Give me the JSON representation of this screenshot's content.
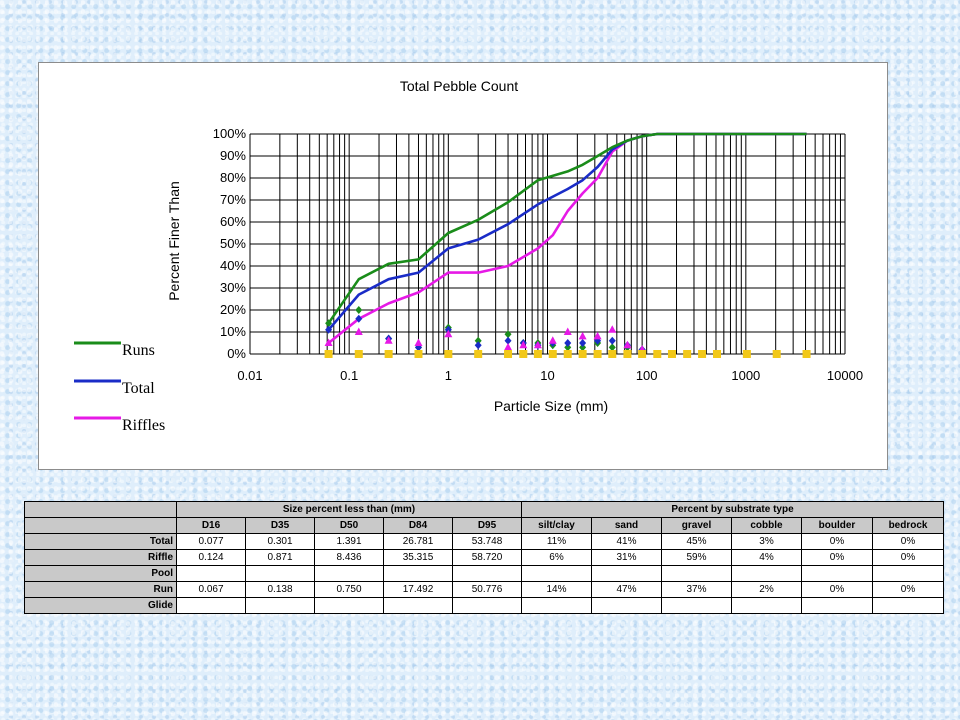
{
  "chart_data": {
    "type": "line",
    "title": "Total Pebble Count",
    "xlabel": "Particle Size (mm)",
    "ylabel": "Percent Finer Than",
    "x_scale": "log",
    "xlim": [
      0.01,
      10000
    ],
    "ylim": [
      0,
      100
    ],
    "x_tick_labels": [
      "0.01",
      "0.1",
      "1",
      "10",
      "100",
      "1000",
      "10000"
    ],
    "x_tick_values": [
      0.01,
      0.1,
      1,
      10,
      100,
      1000,
      10000
    ],
    "y_tick_labels": [
      "0%",
      "10%",
      "20%",
      "30%",
      "40%",
      "50%",
      "60%",
      "70%",
      "80%",
      "90%",
      "100%"
    ],
    "y_tick_values": [
      0,
      10,
      20,
      30,
      40,
      50,
      60,
      70,
      80,
      90,
      100
    ],
    "grid": true,
    "legend_position": "left",
    "series": [
      {
        "name": "Runs",
        "color": "#1a8c1a",
        "x": [
          0.062,
          0.125,
          0.25,
          0.5,
          1,
          2,
          4,
          8,
          16,
          22.6,
          32,
          45,
          64,
          90,
          128,
          180,
          256,
          362,
          512,
          1024,
          2048,
          4096
        ],
        "y": [
          14,
          34,
          41,
          43,
          55,
          61,
          69,
          79,
          83,
          86,
          90,
          94,
          97,
          99,
          100,
          100,
          100,
          100,
          100,
          100,
          100,
          100
        ]
      },
      {
        "name": "Total",
        "color": "#1a2cc7",
        "x": [
          0.062,
          0.125,
          0.25,
          0.5,
          1,
          2,
          4,
          8,
          16,
          22.6,
          32,
          45,
          64,
          90,
          128,
          180,
          256,
          362,
          512,
          1024,
          2048,
          4096
        ],
        "y": [
          11,
          27,
          34,
          37,
          48,
          52,
          59,
          68,
          75,
          79,
          85,
          93,
          97,
          99,
          100,
          100,
          100,
          100,
          100,
          100,
          100,
          100
        ]
      },
      {
        "name": "Riffles",
        "color": "#e619e6",
        "x": [
          0.062,
          0.125,
          0.25,
          0.5,
          1,
          2,
          4,
          8,
          11.3,
          16,
          22.6,
          32,
          45,
          64,
          90,
          128,
          180,
          256,
          362,
          512,
          1024,
          2048,
          4096
        ],
        "y": [
          5,
          16,
          23,
          28,
          37,
          37,
          40,
          48,
          54,
          65,
          73,
          80,
          92,
          97,
          99,
          100,
          100,
          100,
          100,
          100,
          100,
          100,
          100
        ]
      }
    ],
    "point_series": [
      {
        "color": "#1a8c1a",
        "marker": "diamond",
        "x": [
          0.062,
          0.125,
          0.25,
          0.5,
          1,
          2,
          4,
          5.7,
          8,
          11.3,
          16,
          22.6,
          32,
          45,
          64,
          90
        ],
        "y": [
          14,
          20,
          7,
          3,
          12,
          6,
          9,
          5,
          5,
          4,
          3,
          3,
          5,
          3,
          3,
          2
        ]
      },
      {
        "color": "#1a2cc7",
        "marker": "diamond",
        "x": [
          0.062,
          0.125,
          0.25,
          0.5,
          1,
          2,
          4,
          5.7,
          8,
          11.3,
          16,
          22.6,
          32,
          45,
          64,
          90
        ],
        "y": [
          11,
          16,
          7,
          3,
          11,
          4,
          6,
          5,
          4,
          5,
          5,
          5,
          6,
          6,
          4,
          2
        ]
      },
      {
        "color": "#e619e6",
        "marker": "triangle",
        "x": [
          0.062,
          0.125,
          0.25,
          0.5,
          1,
          2,
          4,
          5.7,
          8,
          11.3,
          16,
          22.6,
          32,
          45,
          64,
          90
        ],
        "y": [
          5,
          10,
          6,
          5,
          9,
          0,
          3,
          4,
          4,
          6,
          10,
          8,
          8,
          11,
          4,
          2
        ]
      },
      {
        "color": "#f2c818",
        "marker": "square",
        "x": [
          0.062,
          0.125,
          0.25,
          0.5,
          1,
          2,
          4,
          5.7,
          8,
          11.3,
          16,
          22.6,
          32,
          45,
          64,
          90,
          128,
          180,
          256,
          362,
          512,
          1024,
          2048,
          4096
        ],
        "y": [
          0,
          0,
          0,
          0,
          0,
          0,
          0,
          0,
          0,
          0,
          0,
          0,
          0,
          0,
          0,
          0,
          0,
          0,
          0,
          0,
          0,
          0,
          0,
          0
        ]
      }
    ]
  },
  "table": {
    "group_headers": [
      "Size percent less than (mm)",
      "Percent by substrate type"
    ],
    "columns": [
      "D16",
      "D35",
      "D50",
      "D84",
      "D95",
      "silt/clay",
      "sand",
      "gravel",
      "cobble",
      "boulder",
      "bedrock"
    ],
    "rows": [
      {
        "label": "Total",
        "values": [
          "0.077",
          "0.301",
          "1.391",
          "26.781",
          "53.748",
          "11%",
          "41%",
          "45%",
          "3%",
          "0%",
          "0%"
        ]
      },
      {
        "label": "Riffle",
        "values": [
          "0.124",
          "0.871",
          "8.436",
          "35.315",
          "58.720",
          "6%",
          "31%",
          "59%",
          "4%",
          "0%",
          "0%"
        ]
      },
      {
        "label": "Pool",
        "values": [
          "",
          "",
          "",
          "",
          "",
          "",
          "",
          "",
          "",
          "",
          ""
        ]
      },
      {
        "label": "Run",
        "values": [
          "0.067",
          "0.138",
          "0.750",
          "17.492",
          "50.776",
          "14%",
          "47%",
          "37%",
          "2%",
          "0%",
          "0%"
        ]
      },
      {
        "label": "Glide",
        "values": [
          "",
          "",
          "",
          "",
          "",
          "",
          "",
          "",
          "",
          "",
          ""
        ]
      }
    ]
  }
}
